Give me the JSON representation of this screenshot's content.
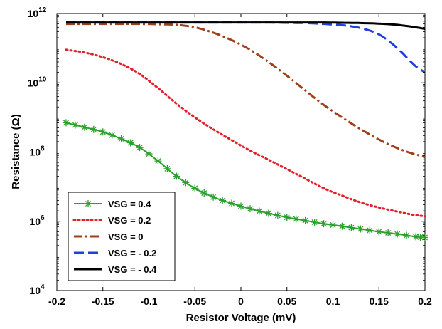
{
  "chart_data": {
    "type": "line",
    "title": "",
    "xlabel": "Resistor Voltage (mV)",
    "ylabel": "Resistance (Ω)",
    "xlim": [
      -0.2,
      0.2
    ],
    "ylim": [
      10000,
      1000000000000
    ],
    "yscale": "log",
    "grid": false,
    "legend_position": "bottom-left",
    "x_ticks": [
      "-0.2",
      "-0.15",
      "-0.1",
      "-0.05",
      "0",
      "0.05",
      "0.1",
      "0.15",
      "0.2"
    ],
    "y_ticks": [
      {
        "base": "10",
        "exp": "4"
      },
      {
        "base": "10",
        "exp": "6"
      },
      {
        "base": "10",
        "exp": "8"
      },
      {
        "base": "10",
        "exp": "10"
      },
      {
        "base": "10",
        "exp": "12"
      }
    ],
    "x": [
      -0.19,
      -0.17,
      -0.15,
      -0.13,
      -0.11,
      -0.09,
      -0.07,
      -0.05,
      -0.03,
      -0.01,
      0.01,
      0.03,
      0.05,
      0.07,
      0.09,
      0.11,
      0.13,
      0.15,
      0.17,
      0.19,
      0.2
    ],
    "series": [
      {
        "name": "VSG = 0.4",
        "color": "#2ca02c",
        "style": "solid-star",
        "values": [
          700000000.0,
          520000000.0,
          380000000.0,
          240000000.0,
          135000000.0,
          55000000.0,
          20000000.0,
          9000000.0,
          5000000.0,
          3300000.0,
          2300000.0,
          1700000.0,
          1300000.0,
          1050000.0,
          850000.0,
          720000.0,
          600000.0,
          500000.0,
          430000.0,
          360000.0,
          340000.0
        ]
      },
      {
        "name": "VSG = 0.2",
        "color": "#e0202a",
        "style": "dotted",
        "values": [
          90000000000.0,
          75000000000.0,
          55000000000.0,
          35000000000.0,
          18000000000.0,
          7000000000.0,
          2500000000.0,
          1000000000.0,
          450000000.0,
          220000000.0,
          110000000.0,
          60000000.0,
          32000000.0,
          17000000.0,
          9000000.0,
          5500000.0,
          3500000.0,
          2500000.0,
          1900000.0,
          1500000.0,
          1400000.0
        ]
      },
      {
        "name": "VSG = 0",
        "color": "#a0401a",
        "style": "dash-dot",
        "values": [
          500000000000.0,
          500000000000.0,
          500000000000.0,
          500000000000.0,
          500000000000.0,
          490000000000.0,
          470000000000.0,
          400000000000.0,
          280000000000.0,
          170000000000.0,
          90000000000.0,
          40000000000.0,
          16000000000.0,
          6000000000.0,
          2300000000.0,
          1000000000.0,
          460000000.0,
          230000000.0,
          130000000.0,
          85000000.0,
          75000000.0
        ]
      },
      {
        "name": "VSG = - 0.2",
        "color": "#1f3fe0",
        "style": "dashed",
        "values": [
          550000000000.0,
          550000000000.0,
          550000000000.0,
          550000000000.0,
          550000000000.0,
          550000000000.0,
          550000000000.0,
          550000000000.0,
          550000000000.0,
          550000000000.0,
          550000000000.0,
          550000000000.0,
          540000000000.0,
          530000000000.0,
          500000000000.0,
          460000000000.0,
          380000000000.0,
          250000000000.0,
          100000000000.0,
          30000000000.0,
          20000000000.0
        ]
      },
      {
        "name": "VSG = - 0.4",
        "color": "#000000",
        "style": "solid",
        "values": [
          550000000000.0,
          550000000000.0,
          550000000000.0,
          550000000000.0,
          550000000000.0,
          550000000000.0,
          550000000000.0,
          550000000000.0,
          550000000000.0,
          550000000000.0,
          550000000000.0,
          550000000000.0,
          550000000000.0,
          550000000000.0,
          550000000000.0,
          540000000000.0,
          530000000000.0,
          510000000000.0,
          470000000000.0,
          400000000000.0,
          360000000000.0
        ]
      }
    ]
  }
}
